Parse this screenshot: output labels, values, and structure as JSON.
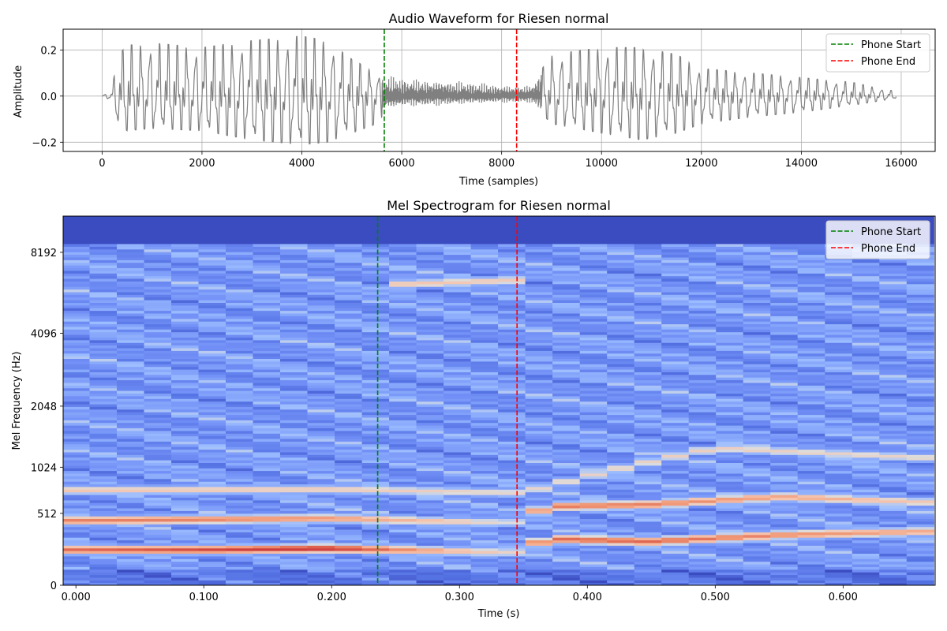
{
  "chart_data": [
    {
      "type": "line",
      "title": "Audio Waveform for Riesen  normal",
      "xlabel": "Time (samples)",
      "ylabel": "Amplitude",
      "xlim": [
        -780,
        16680
      ],
      "ylim": [
        -0.24,
        0.29
      ],
      "xticks": [
        {
          "value": 0,
          "label": "0"
        },
        {
          "value": 2000,
          "label": "2000"
        },
        {
          "value": 4000,
          "label": "4000"
        },
        {
          "value": 6000,
          "label": "6000"
        },
        {
          "value": 8000,
          "label": "8000"
        },
        {
          "value": 10000,
          "label": "10000"
        },
        {
          "value": 12000,
          "label": "12000"
        },
        {
          "value": 14000,
          "label": "14000"
        },
        {
          "value": 16000,
          "label": "16000"
        }
      ],
      "yticks": [
        {
          "value": -0.2,
          "label": "−0.2"
        },
        {
          "value": 0.0,
          "label": "0.0"
        },
        {
          "value": 0.2,
          "label": "0.2"
        }
      ],
      "grid": true,
      "legend_position": "top-right",
      "series": [
        {
          "name": "waveform",
          "color": "#808080",
          "sample_rate_approx": 23800,
          "n_samples": 15900,
          "envelope": {
            "samples": [
              0,
              200,
              300,
              500,
              1000,
              2000,
              3000,
              4000,
              4500,
              5000,
              5500,
              5700,
              6000,
              7000,
              8000,
              8600,
              9000,
              10000,
              10800,
              11500,
              12000,
              13000,
              14000,
              15000,
              15900
            ],
            "upper": [
              0.0,
              0.03,
              0.17,
              0.22,
              0.23,
              0.21,
              0.24,
              0.26,
              0.24,
              0.16,
              0.1,
              0.09,
              0.08,
              0.07,
              0.05,
              0.05,
              0.18,
              0.21,
              0.21,
              0.18,
              0.12,
              0.1,
              0.08,
              0.06,
              0.02
            ],
            "lower": [
              0.0,
              -0.02,
              -0.12,
              -0.15,
              -0.14,
              -0.15,
              -0.19,
              -0.21,
              -0.2,
              -0.16,
              -0.12,
              -0.06,
              -0.05,
              -0.04,
              -0.03,
              -0.03,
              -0.12,
              -0.16,
              -0.19,
              -0.16,
              -0.12,
              -0.09,
              -0.07,
              -0.04,
              -0.01
            ]
          }
        },
        {
          "name": "Phone Start",
          "type": "vline",
          "x": 5650,
          "color": "#008000",
          "style": "dashed"
        },
        {
          "name": "Phone End",
          "type": "vline",
          "x": 8300,
          "color": "#ff0000",
          "style": "dashed"
        }
      ]
    },
    {
      "type": "heatmap",
      "title": "Mel Spectrogram for Riesen normal",
      "xlabel": "Time (s)",
      "ylabel": "Mel Frequency (Hz)",
      "xlim": [
        -0.01,
        0.672
      ],
      "colormap": "coolwarm",
      "y_scale": "mel",
      "y_max_hz": 11025,
      "xticks": [
        {
          "value": 0.0,
          "label": "0.000"
        },
        {
          "value": 0.1,
          "label": "0.100"
        },
        {
          "value": 0.2,
          "label": "0.200"
        },
        {
          "value": 0.3,
          "label": "0.300"
        },
        {
          "value": 0.4,
          "label": "0.400"
        },
        {
          "value": 0.5,
          "label": "0.500"
        },
        {
          "value": 0.6,
          "label": "0.600"
        }
      ],
      "yticks": [
        {
          "value": 0,
          "label": "0"
        },
        {
          "value": 512,
          "label": "512"
        },
        {
          "value": 1024,
          "label": "1024"
        },
        {
          "value": 2048,
          "label": "2048"
        },
        {
          "value": 4096,
          "label": "4096"
        },
        {
          "value": 8192,
          "label": "8192"
        }
      ],
      "frames": 32,
      "frame_duration_s": 0.0213,
      "mel_bands": 128,
      "legend_position": "top-right",
      "formant_tracks": [
        {
          "name": "F1",
          "t": [
            0.0,
            0.1,
            0.2,
            0.3,
            0.34,
            0.37,
            0.45,
            0.55,
            0.67
          ],
          "hz": [
            220,
            220,
            230,
            210,
            200,
            300,
            280,
            330,
            360
          ],
          "intensity": [
            0.85,
            0.9,
            0.95,
            0.65,
            0.55,
            0.85,
            0.85,
            0.78,
            0.7
          ]
        },
        {
          "name": "F2",
          "t": [
            0.0,
            0.1,
            0.2,
            0.3,
            0.34,
            0.37,
            0.45,
            0.55,
            0.67
          ],
          "hz": [
            450,
            460,
            470,
            440,
            430,
            580,
            600,
            680,
            620
          ],
          "intensity": [
            0.8,
            0.8,
            0.75,
            0.6,
            0.5,
            0.82,
            0.8,
            0.72,
            0.6
          ]
        },
        {
          "name": "F3",
          "t": [
            0.0,
            0.2,
            0.35,
            0.5,
            0.67
          ],
          "hz": [
            750,
            760,
            720,
            1300,
            1150
          ],
          "intensity": [
            0.62,
            0.6,
            0.55,
            0.58,
            0.55
          ]
        },
        {
          "name": "frication",
          "t": [
            0.26,
            0.34
          ],
          "hz": [
            6300,
            6500
          ],
          "intensity": [
            0.62,
            0.6
          ]
        }
      ],
      "series": [
        {
          "name": "Phone Start",
          "type": "vline",
          "x": 0.236,
          "color": "#008000",
          "style": "dashed"
        },
        {
          "name": "Phone End",
          "type": "vline",
          "x": 0.345,
          "color": "#ff0000",
          "style": "dashed"
        }
      ]
    }
  ],
  "legend": {
    "start_label": "Phone Start",
    "end_label": "Phone End"
  }
}
